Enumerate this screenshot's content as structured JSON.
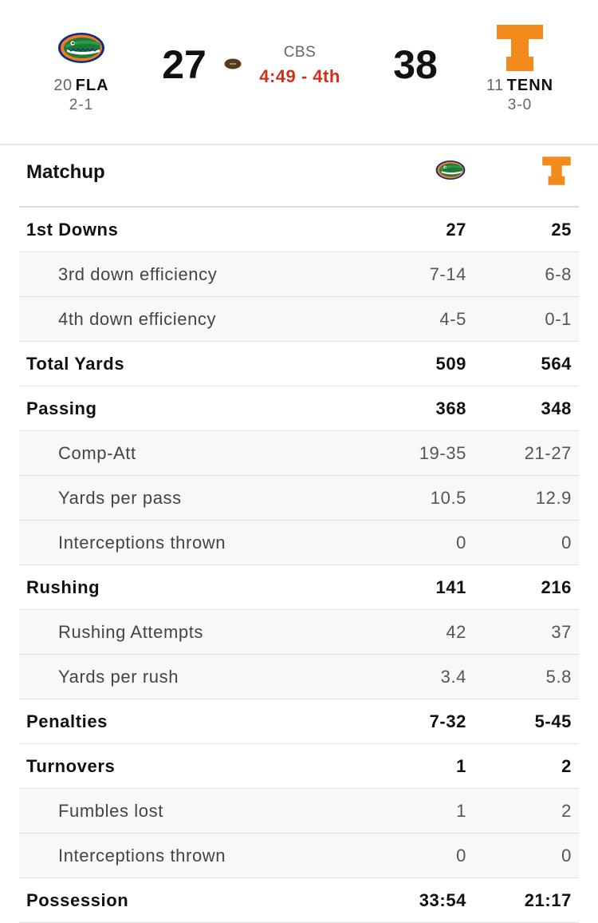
{
  "game": {
    "away": {
      "rank": "20",
      "abbr": "FLA",
      "record": "2-1",
      "score": "27",
      "logo_icon": "gator-logo-icon",
      "color": "#0021A5"
    },
    "home": {
      "rank": "11",
      "abbr": "TENN",
      "record": "3-0",
      "score": "38",
      "logo_icon": "power-t-logo-icon",
      "color": "#F28A1C"
    },
    "network": "CBS",
    "clock": "4:49 - 4th",
    "clock_color": "#D0311F",
    "possession_icon": "football-icon"
  },
  "matchup": {
    "title": "Matchup",
    "rows": [
      {
        "label": "1st Downs",
        "away": "27",
        "home": "25",
        "type": "main"
      },
      {
        "label": "3rd down efficiency",
        "away": "7-14",
        "home": "6-8",
        "type": "sub"
      },
      {
        "label": "4th down efficiency",
        "away": "4-5",
        "home": "0-1",
        "type": "sub"
      },
      {
        "label": "Total Yards",
        "away": "509",
        "home": "564",
        "type": "main"
      },
      {
        "label": "Passing",
        "away": "368",
        "home": "348",
        "type": "main"
      },
      {
        "label": "Comp-Att",
        "away": "19-35",
        "home": "21-27",
        "type": "sub"
      },
      {
        "label": "Yards per pass",
        "away": "10.5",
        "home": "12.9",
        "type": "sub"
      },
      {
        "label": "Interceptions thrown",
        "away": "0",
        "home": "0",
        "type": "sub"
      },
      {
        "label": "Rushing",
        "away": "141",
        "home": "216",
        "type": "main"
      },
      {
        "label": "Rushing Attempts",
        "away": "42",
        "home": "37",
        "type": "sub"
      },
      {
        "label": "Yards per rush",
        "away": "3.4",
        "home": "5.8",
        "type": "sub"
      },
      {
        "label": "Penalties",
        "away": "7-32",
        "home": "5-45",
        "type": "main"
      },
      {
        "label": "Turnovers",
        "away": "1",
        "home": "2",
        "type": "main"
      },
      {
        "label": "Fumbles lost",
        "away": "1",
        "home": "2",
        "type": "sub"
      },
      {
        "label": "Interceptions thrown",
        "away": "0",
        "home": "0",
        "type": "sub"
      },
      {
        "label": "Possession",
        "away": "33:54",
        "home": "21:17",
        "type": "main"
      }
    ]
  }
}
